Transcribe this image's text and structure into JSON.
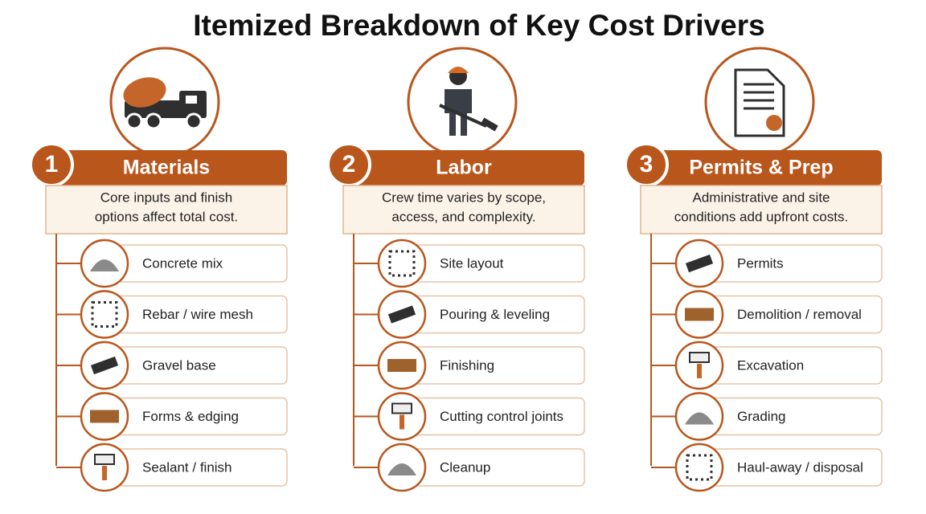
{
  "header": {
    "title": "Itemized Breakdown of Key Cost Drivers"
  },
  "columns": [
    {
      "number": "1",
      "title": "Materials",
      "description": [
        "Core inputs and finish",
        "options affect total cost."
      ],
      "items": [
        "Concrete mix",
        "Rebar / wire mesh",
        "Gravel base",
        "Forms & edging",
        "Sealant / finish"
      ]
    },
    {
      "number": "2",
      "title": "Labor",
      "description": [
        "Crew time varies by scope,",
        "access, and complexity."
      ],
      "items": [
        "Site layout",
        "Pouring & leveling",
        "Finishing",
        "Cutting control joints",
        "Cleanup"
      ]
    },
    {
      "number": "3",
      "title": "Permits & Prep",
      "description": [
        "Administrative and site",
        "conditions add upfront costs."
      ],
      "items": [
        "Permits",
        "Demolition / removal",
        "Excavation",
        "Grading",
        "Haul-away / disposal"
      ]
    }
  ]
}
